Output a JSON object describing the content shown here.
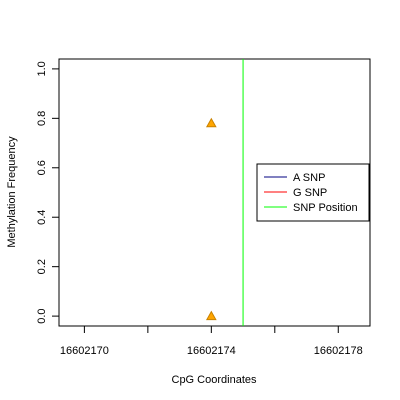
{
  "chart_data": {
    "type": "scatter",
    "title": "",
    "xlabel": "CpG Coordinates",
    "ylabel": "Methylation Frequency",
    "xlim": [
      16602169.2,
      16602179.0
    ],
    "ylim": [
      -0.04,
      1.04
    ],
    "x_ticks": [
      16602170,
      16602172,
      16602174,
      16602176,
      16602178
    ],
    "x_tick_labels": [
      "16602170",
      "",
      "16602174",
      "",
      "16602178"
    ],
    "y_ticks": [
      0.0,
      0.2,
      0.4,
      0.6,
      0.8,
      1.0
    ],
    "y_tick_labels": [
      "0.0",
      "0.2",
      "0.4",
      "0.6",
      "0.8",
      "1.0"
    ],
    "grid": false,
    "legend_position": "right",
    "series": [
      {
        "name": "A SNP",
        "color": "#000080",
        "marker": "line",
        "points": []
      },
      {
        "name": "G SNP",
        "color": "#ff0000",
        "marker": "line",
        "points": []
      },
      {
        "name": "",
        "color": "#ffa500",
        "marker": "triangle",
        "points": [
          {
            "x": 16602174,
            "y": 0.78
          },
          {
            "x": 16602174,
            "y": 0.0
          }
        ]
      }
    ],
    "snp_position": {
      "name": "SNP Position",
      "x": 16602175,
      "color": "#00ff00"
    },
    "legend": [
      {
        "label": "A SNP",
        "color": "#000080"
      },
      {
        "label": "G SNP",
        "color": "#ff0000"
      },
      {
        "label": "SNP Position",
        "color": "#00ff00"
      }
    ]
  }
}
